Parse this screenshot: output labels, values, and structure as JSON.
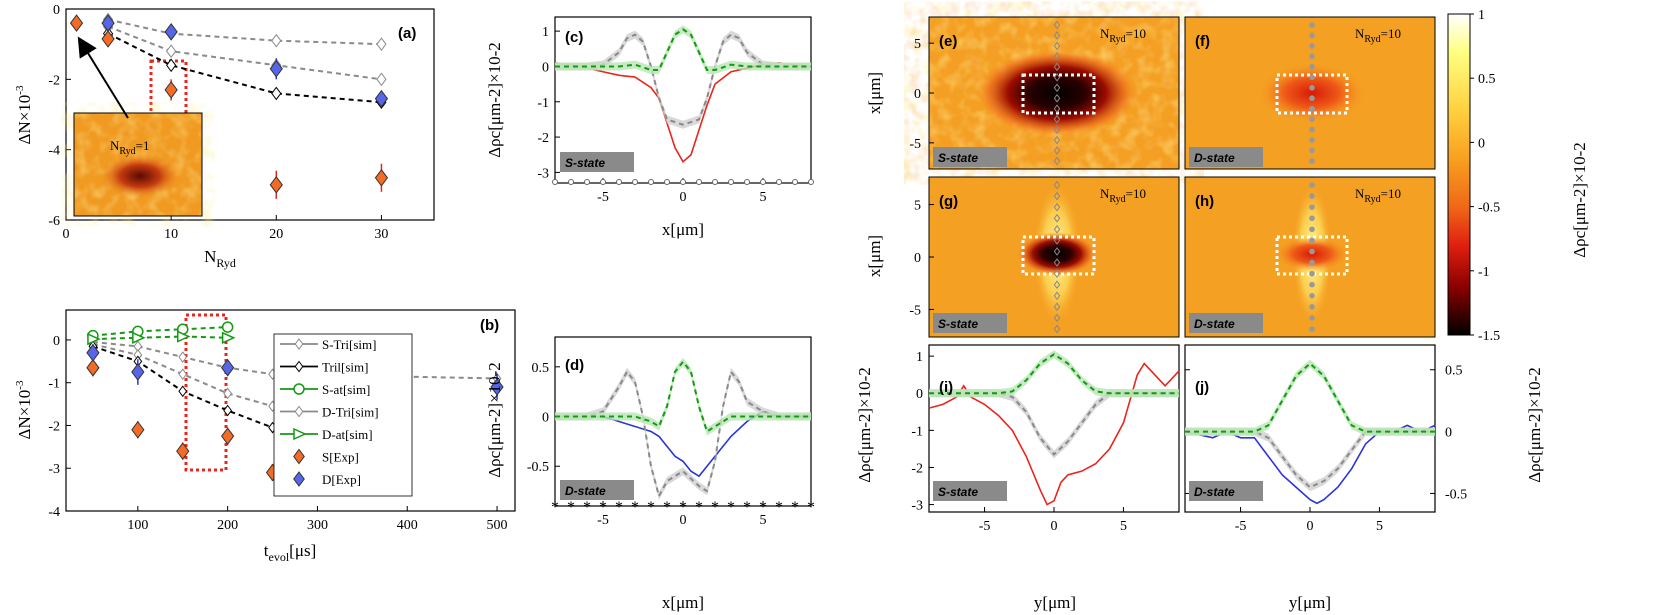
{
  "colors": {
    "red": "#e8261d",
    "blue": "#2a35d6",
    "green": "#149a12",
    "grey": "#8a8a8a",
    "black": "#000000",
    "orange": "#f46b26",
    "diamondBlue": "#5567e8",
    "dashedBox": "#e8261d"
  },
  "panels": {
    "a": {
      "label": "(a)",
      "xlabel_main": "N",
      "xlabel_sub": "Ryd",
      "ylabel_main": "ΔN×10",
      "ylabel_sup": "-3",
      "xticks": [
        "0",
        "10",
        "20",
        "30"
      ],
      "yticks": [
        "0",
        "-2",
        "-4",
        "-6"
      ],
      "inset_label_main": "N",
      "inset_label_sub": "Ryd",
      "inset_label_val": "=1"
    },
    "b": {
      "label": "(b)",
      "xlabel_main": "t",
      "xlabel_sub": "evol",
      "xlabel_unit": "[μs]",
      "ylabel_main": "ΔN×10",
      "ylabel_sup": "-3",
      "xticks": [
        "100",
        "200",
        "300",
        "400",
        "500"
      ],
      "yticks": [
        "0",
        "-1",
        "-2",
        "-3",
        "-4"
      ],
      "legend": [
        "S-Tri[sim]",
        "Tril[sim]",
        "S-at[sim]",
        "D-Tri[sim]",
        "D-at[sim]",
        "S[Exp]",
        "D[Exp]"
      ]
    },
    "c": {
      "label": "(c)",
      "badge": "S-state",
      "xlabel": "x[μm]",
      "xticks": [
        "-5",
        "0",
        "5"
      ],
      "yticks": [
        "1",
        "0",
        "-1",
        "-2",
        "-3"
      ],
      "ylabel": "Δρc[μm-2]×10-2"
    },
    "d": {
      "label": "(d)",
      "badge": "D-state",
      "xlabel": "x[μm]",
      "xticks": [
        "-5",
        "0",
        "5"
      ],
      "yticks": [
        "0.5",
        "0",
        "-0.5"
      ],
      "ylabel": "Δρc[μm-2]×10-2"
    },
    "e": {
      "label": "(e)",
      "badge": "S-state",
      "nryd_main": "N",
      "nryd_sub": "Ryd",
      "nryd_val": "=10"
    },
    "f": {
      "label": "(f)",
      "badge": "D-state",
      "nryd_main": "N",
      "nryd_sub": "Ryd",
      "nryd_val": "=10"
    },
    "g": {
      "label": "(g)",
      "badge": "S-state",
      "nryd_main": "N",
      "nryd_sub": "Ryd",
      "nryd_val": "=10"
    },
    "h": {
      "label": "(h)",
      "badge": "D-state",
      "nryd_main": "N",
      "nryd_sub": "Ryd",
      "nryd_val": "=10"
    },
    "i": {
      "label": "(i)",
      "badge": "S-state",
      "xlabel": "y[μm]",
      "xticks": [
        "-5",
        "0",
        "5"
      ],
      "yticks": [
        "1",
        "0",
        "-1",
        "-2",
        "-3"
      ]
    },
    "j": {
      "label": "(j)",
      "badge": "D-state",
      "xlabel": "y[μm]",
      "xticks": [
        "-5",
        "0",
        "5"
      ],
      "yticks": [
        "0.5",
        "0",
        "-0.5"
      ]
    },
    "maps": {
      "ylabel": "x[μm]",
      "yticks": [
        "5",
        "0",
        "-5"
      ]
    },
    "colorbar": {
      "ticks": [
        "1",
        "0.5",
        "0",
        "-0.5",
        "-1",
        "-1.5"
      ],
      "label": "Δρc[μm-2]×10-2"
    }
  },
  "chart_data": [
    {
      "panel": "a",
      "type": "scatter",
      "xlim": [
        0,
        35
      ],
      "ylim": [
        -6,
        0
      ],
      "series": [
        {
          "name": "S-Tri[sim]",
          "style": "grey-dashed",
          "x": [
            4,
            10,
            20,
            30
          ],
          "y": [
            -0.3,
            -0.7,
            -0.9,
            -1.0
          ]
        },
        {
          "name": "D-Tri[sim]",
          "style": "grey-dashed",
          "x": [
            4,
            10,
            20,
            30
          ],
          "y": [
            -0.5,
            -1.2,
            -1.6,
            -2.0
          ]
        },
        {
          "name": "Tril[sim]",
          "style": "black-dashed",
          "x": [
            4,
            10,
            20,
            30
          ],
          "y": [
            -0.7,
            -1.6,
            -2.4,
            -2.65
          ]
        },
        {
          "name": "S[Exp]",
          "style": "orange-diamond",
          "x": [
            1,
            4,
            10,
            20,
            30
          ],
          "y": [
            -0.4,
            -0.85,
            -2.3,
            -5.0,
            -4.8
          ],
          "err": [
            0.1,
            0.2,
            0.3,
            0.4,
            0.4
          ]
        },
        {
          "name": "D[Exp]",
          "style": "blue-diamond",
          "x": [
            4,
            10,
            20,
            30
          ],
          "y": [
            -0.4,
            -0.65,
            -1.7,
            -2.55
          ],
          "err": [
            0.2,
            0.2,
            0.3,
            0.2
          ]
        }
      ]
    },
    {
      "panel": "b",
      "type": "scatter",
      "xlim": [
        20,
        520
      ],
      "ylim": [
        -4,
        0.7
      ],
      "series": [
        {
          "name": "S-Tri[sim]",
          "style": "grey-dashed",
          "x": [
            50,
            100,
            150,
            200,
            250,
            500
          ],
          "y": [
            -0.05,
            -0.15,
            -0.4,
            -0.65,
            -0.8,
            -0.9
          ]
        },
        {
          "name": "D-Tri[sim]",
          "style": "grey-dashed",
          "x": [
            50,
            100,
            150,
            200,
            250
          ],
          "y": [
            -0.1,
            -0.35,
            -0.8,
            -1.25,
            -1.55
          ]
        },
        {
          "name": "Tril[sim]",
          "style": "black-dashed",
          "x": [
            50,
            100,
            150,
            200,
            250
          ],
          "y": [
            -0.15,
            -0.5,
            -1.2,
            -1.65,
            -2.05
          ]
        },
        {
          "name": "S-at[sim]",
          "style": "green-dashed-circle",
          "x": [
            50,
            100,
            150,
            200
          ],
          "y": [
            0.1,
            0.2,
            0.25,
            0.3
          ]
        },
        {
          "name": "D-at[sim]",
          "style": "green-dashed-triangle",
          "x": [
            50,
            100,
            150,
            200
          ],
          "y": [
            0.02,
            0.05,
            0.08,
            0.05
          ]
        },
        {
          "name": "S[Exp]",
          "style": "orange-diamond",
          "x": [
            50,
            100,
            150,
            200,
            250
          ],
          "y": [
            -0.65,
            -2.1,
            -2.6,
            -2.25,
            -3.1
          ],
          "err": [
            0.2,
            0.2,
            0.2,
            0.2,
            0.2
          ]
        },
        {
          "name": "D[Exp]",
          "style": "blue-diamond",
          "x": [
            50,
            100,
            200,
            500
          ],
          "y": [
            -0.3,
            -0.75,
            -0.65,
            -1.1
          ],
          "err": [
            0.2,
            0.3,
            0.1,
            0.3
          ]
        }
      ]
    },
    {
      "panel": "c",
      "type": "line",
      "xlim": [
        -8,
        8
      ],
      "ylim": [
        -3.3,
        1.4
      ],
      "series": [
        {
          "name": "exp",
          "style": "red",
          "x": [
            -8,
            -7,
            -6,
            -5,
            -4,
            -3,
            -2,
            -1.5,
            -1,
            -0.5,
            0,
            0.5,
            1,
            1.5,
            2,
            3,
            4,
            5,
            6,
            7,
            8
          ],
          "y": [
            0.1,
            0.05,
            -0.05,
            -0.15,
            -0.25,
            -0.3,
            -0.6,
            -0.9,
            -1.6,
            -2.3,
            -2.7,
            -2.5,
            -1.8,
            -1.1,
            -0.5,
            -0.15,
            -0.05,
            0.05,
            0.1,
            0.05,
            0
          ]
        },
        {
          "name": "tri",
          "style": "grey-dashed",
          "x": [
            -8,
            -6,
            -5,
            -4,
            -3.5,
            -3,
            -2.5,
            -2,
            -1.5,
            -1,
            0,
            1,
            1.5,
            2,
            2.5,
            3,
            3.5,
            4,
            5,
            6,
            8
          ],
          "y": [
            0,
            0,
            0.05,
            0.4,
            0.8,
            0.9,
            0.7,
            0,
            -0.9,
            -1.5,
            -1.65,
            -1.5,
            -0.9,
            0,
            0.7,
            0.9,
            0.8,
            0.4,
            0.05,
            0,
            0
          ]
        },
        {
          "name": "at",
          "style": "green-dashed",
          "x": [
            -8,
            -4,
            -3,
            -2,
            -1.5,
            -1,
            -0.5,
            0,
            0.5,
            1,
            1.5,
            2,
            3,
            4,
            8
          ],
          "y": [
            0,
            0,
            0.05,
            -0.1,
            -0.1,
            0.4,
            0.9,
            1.05,
            0.9,
            0.4,
            -0.1,
            -0.1,
            0.05,
            0,
            0
          ]
        }
      ]
    },
    {
      "panel": "d",
      "type": "line",
      "xlim": [
        -8,
        8
      ],
      "ylim": [
        -0.9,
        0.8
      ],
      "series": [
        {
          "name": "exp",
          "style": "blue",
          "x": [
            -8,
            -6,
            -5,
            -4,
            -3,
            -2,
            -1.5,
            -1,
            -0.5,
            0,
            0.5,
            1,
            1.5,
            2,
            3,
            4,
            5,
            6,
            7,
            8
          ],
          "y": [
            0,
            0,
            0,
            -0.05,
            -0.1,
            -0.15,
            -0.2,
            -0.3,
            -0.4,
            -0.45,
            -0.55,
            -0.6,
            -0.5,
            -0.4,
            -0.2,
            -0.05,
            0.05,
            0,
            0,
            0
          ]
        },
        {
          "name": "tri",
          "style": "grey-dashed",
          "x": [
            -8,
            -6,
            -5,
            -4,
            -3.5,
            -3,
            -2.5,
            -2,
            -1.5,
            -1,
            0,
            1,
            1.5,
            2,
            2.5,
            3,
            3.5,
            4,
            5,
            6,
            8
          ],
          "y": [
            0,
            0,
            0.05,
            0.3,
            0.45,
            0.35,
            0,
            -0.5,
            -0.8,
            -0.65,
            -0.55,
            -0.7,
            -0.75,
            -0.45,
            0.1,
            0.45,
            0.35,
            0.15,
            0.05,
            0,
            0
          ]
        },
        {
          "name": "at",
          "style": "green-dashed",
          "x": [
            -8,
            -4,
            -3,
            -2,
            -1.5,
            -1,
            -0.5,
            0,
            0.5,
            1,
            1.5,
            2,
            3,
            4,
            8
          ],
          "y": [
            0,
            0,
            0,
            -0.05,
            -0.1,
            0.1,
            0.45,
            0.55,
            0.45,
            0.1,
            -0.15,
            -0.1,
            0,
            0,
            0
          ]
        }
      ]
    },
    {
      "panel": "i",
      "type": "line",
      "xlim": [
        -9,
        9
      ],
      "ylim": [
        -3.2,
        1.3
      ],
      "series": [
        {
          "name": "exp",
          "style": "red",
          "x": [
            -9,
            -8,
            -7,
            -6.5,
            -6,
            -5,
            -4,
            -3,
            -2,
            -1,
            -0.5,
            0,
            0.5,
            1,
            2,
            3,
            4,
            5,
            6,
            6.5,
            7,
            8,
            9
          ],
          "y": [
            -0.4,
            -0.3,
            -0.1,
            0.2,
            -0.1,
            -0.3,
            -0.6,
            -1,
            -1.7,
            -2.6,
            -3,
            -2.9,
            -2.4,
            -2.2,
            -2.1,
            -1.9,
            -1.5,
            -0.8,
            0.5,
            0.8,
            0.6,
            0.2,
            0.6
          ]
        },
        {
          "name": "tri",
          "style": "grey-dashed",
          "x": [
            -9,
            -4,
            -3,
            -2,
            -1,
            0,
            1,
            2,
            3,
            4,
            9
          ],
          "y": [
            0,
            0,
            -0.1,
            -0.5,
            -1.2,
            -1.65,
            -1.3,
            -0.8,
            -0.3,
            0,
            0
          ]
        },
        {
          "name": "at",
          "style": "green-dashed",
          "x": [
            -9,
            -4,
            -3,
            -2,
            -1,
            0,
            1,
            2,
            3,
            4,
            9
          ],
          "y": [
            0,
            0,
            0.05,
            0.35,
            0.8,
            1.05,
            0.8,
            0.35,
            0.05,
            0,
            0
          ]
        }
      ]
    },
    {
      "panel": "j",
      "type": "line",
      "xlim": [
        -9,
        9
      ],
      "ylim": [
        -0.65,
        0.7
      ],
      "series": [
        {
          "name": "exp",
          "style": "blue",
          "x": [
            -9,
            -7,
            -6,
            -5,
            -4,
            -3,
            -2,
            -1,
            0,
            0.5,
            1,
            2,
            3,
            4,
            5,
            6,
            7,
            8,
            9
          ],
          "y": [
            0,
            -0.05,
            0,
            -0.05,
            -0.05,
            -0.2,
            -0.35,
            -0.45,
            -0.55,
            -0.58,
            -0.55,
            -0.45,
            -0.3,
            -0.1,
            0,
            0,
            0.05,
            0,
            0.05
          ]
        },
        {
          "name": "tri",
          "style": "grey-dashed",
          "x": [
            -9,
            -4,
            -3,
            -2,
            -1,
            0,
            1,
            2,
            3,
            4,
            9
          ],
          "y": [
            0,
            0,
            -0.05,
            -0.2,
            -0.35,
            -0.45,
            -0.4,
            -0.3,
            -0.15,
            0,
            0
          ]
        },
        {
          "name": "at",
          "style": "green-dashed",
          "x": [
            -9,
            -4,
            -3,
            -2,
            -1,
            0,
            1,
            2,
            3,
            4,
            9
          ],
          "y": [
            0,
            0,
            0.05,
            0.25,
            0.45,
            0.55,
            0.45,
            0.25,
            0.05,
            0,
            0
          ]
        }
      ]
    }
  ]
}
